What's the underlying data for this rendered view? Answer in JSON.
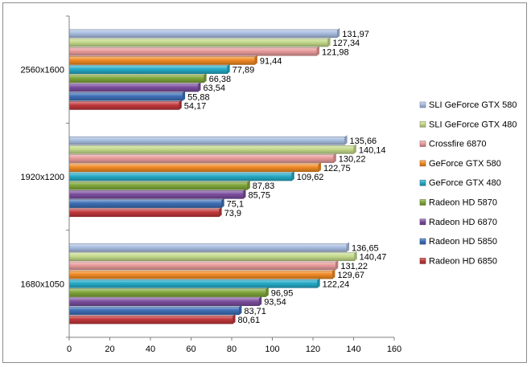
{
  "chart_data": {
    "type": "bar",
    "orientation": "horizontal",
    "categories": [
      "1680x1050",
      "1920x1200",
      "2560x1600"
    ],
    "xlim": [
      0,
      160
    ],
    "xticks": [
      "0",
      "20",
      "40",
      "60",
      "80",
      "100",
      "120",
      "140",
      "160"
    ],
    "grid": false,
    "legend_position": "right",
    "series": [
      {
        "name": "Radeon HD 6850",
        "color": "#c0373a",
        "values": [
          80.61,
          73.9,
          54.17
        ],
        "labels": [
          "80,61",
          "73,9",
          "54,17"
        ]
      },
      {
        "name": "Radeon HD 5850",
        "color": "#3d6fb6",
        "values": [
          83.71,
          75.1,
          55.88
        ],
        "labels": [
          "83,71",
          "75,1",
          "55,88"
        ]
      },
      {
        "name": "Radeon HD 6870",
        "color": "#7b4d9e",
        "values": [
          93.54,
          85.75,
          63.54
        ],
        "labels": [
          "93,54",
          "85,75",
          "63,54"
        ]
      },
      {
        "name": "Radeon HD 5870",
        "color": "#7fa63a",
        "values": [
          96.95,
          87.83,
          66.38
        ],
        "labels": [
          "96,95",
          "87,83",
          "66,38"
        ]
      },
      {
        "name": "GeForce GTX 480",
        "color": "#25aac6",
        "values": [
          122.24,
          109.62,
          77.89
        ],
        "labels": [
          "122,24",
          "109,62",
          "77,89"
        ]
      },
      {
        "name": "GeForce GTX 580",
        "color": "#f08a24",
        "values": [
          129.67,
          122.75,
          91.44
        ],
        "labels": [
          "129,67",
          "122,75",
          "91,44"
        ]
      },
      {
        "name": "Crossfire 6870",
        "color": "#e79a9a",
        "values": [
          131.22,
          130.22,
          121.98
        ],
        "labels": [
          "131,22",
          "130,22",
          "121,98"
        ]
      },
      {
        "name": "SLI GeForce GTX 480",
        "color": "#c3d98a",
        "values": [
          140.47,
          140.14,
          127.34
        ],
        "labels": [
          "140,47",
          "140,14",
          "127,34"
        ]
      },
      {
        "name": "SLI GeForce GTX 580",
        "color": "#a8bde0",
        "values": [
          136.65,
          135.66,
          131.97
        ],
        "labels": [
          "136,65",
          "135,66",
          "131,97"
        ]
      }
    ]
  }
}
